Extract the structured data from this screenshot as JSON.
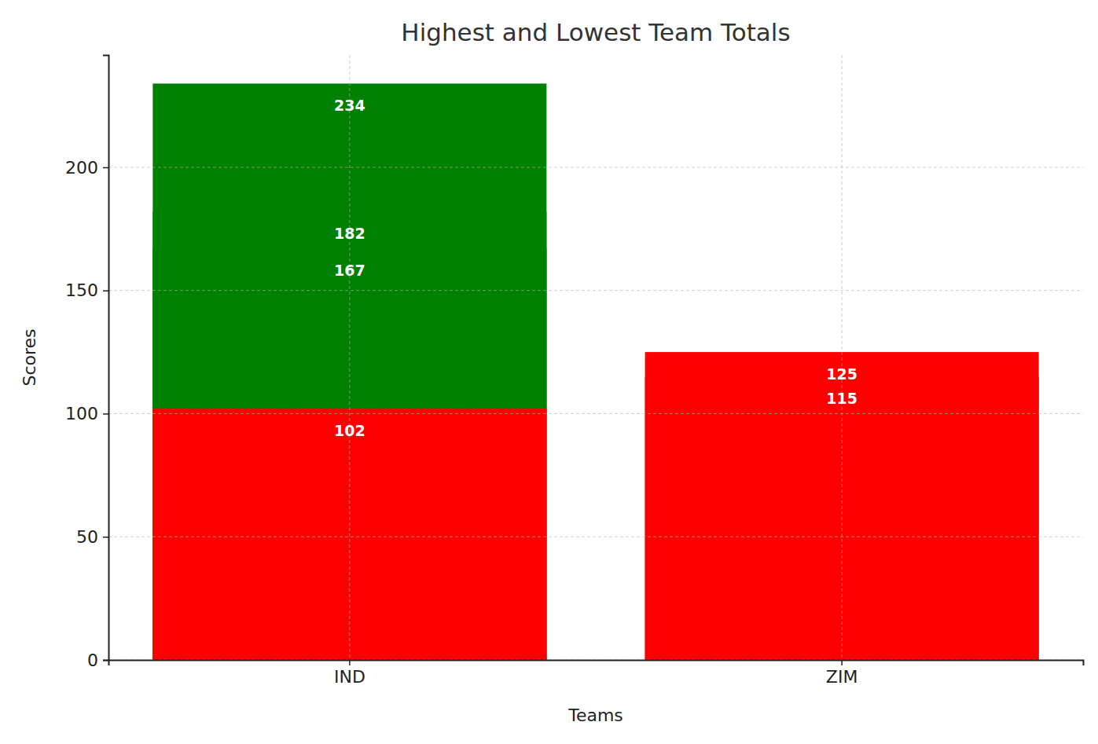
{
  "chart_data": {
    "type": "bar",
    "title": "Highest and Lowest Team Totals",
    "x_label": "Teams",
    "y_label": "Scores",
    "categories": [
      "IND",
      "ZIM"
    ],
    "series": [
      {
        "color": "#008000",
        "values": [
          234,
          null
        ]
      },
      {
        "color": "#008000",
        "values": [
          182,
          null
        ]
      },
      {
        "color": "#008000",
        "values": [
          167,
          null
        ]
      },
      {
        "color": "#ff0000",
        "values": [
          102,
          125
        ]
      },
      {
        "color": "#ff0000",
        "values": [
          null,
          115
        ]
      }
    ],
    "ylim": [
      0,
      245.6
    ],
    "yticks": [
      0,
      50,
      100,
      150,
      200
    ],
    "grid": true,
    "stacked": false,
    "data_labels": true
  }
}
